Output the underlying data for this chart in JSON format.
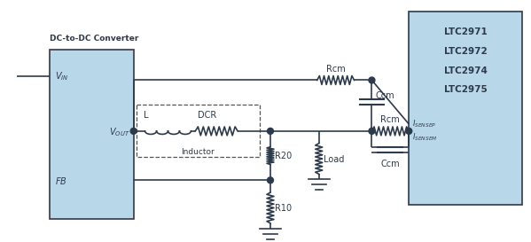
{
  "bg_color": "#ffffff",
  "box_left_color": "#b8d8ea",
  "box_right_color": "#b8d8ea",
  "line_color": "#2d3a4a",
  "dot_color": "#2d3a4a",
  "text_color": "#2d3a4a",
  "title": "DC-to-DC Converter",
  "vin_label": "V",
  "vin_sub": "IN",
  "vout_label": "V",
  "vout_sub": "OUT",
  "fb_label": "FB",
  "chip_labels": [
    "LTC2971",
    "LTC2972",
    "LTC2974",
    "LTC2975"
  ],
  "isensep_label": "I",
  "isensep_sub": "SENSEP",
  "isensem_label": "I",
  "isensem_sub": "SENSEM",
  "inductor_label": "Inductor",
  "dcr_label": "DCR",
  "l_label": "L",
  "r20_label": "R20",
  "r10_label": "R10",
  "rcm_label": "Rcm",
  "ccm_label": "Ccm",
  "load_label": "Load"
}
